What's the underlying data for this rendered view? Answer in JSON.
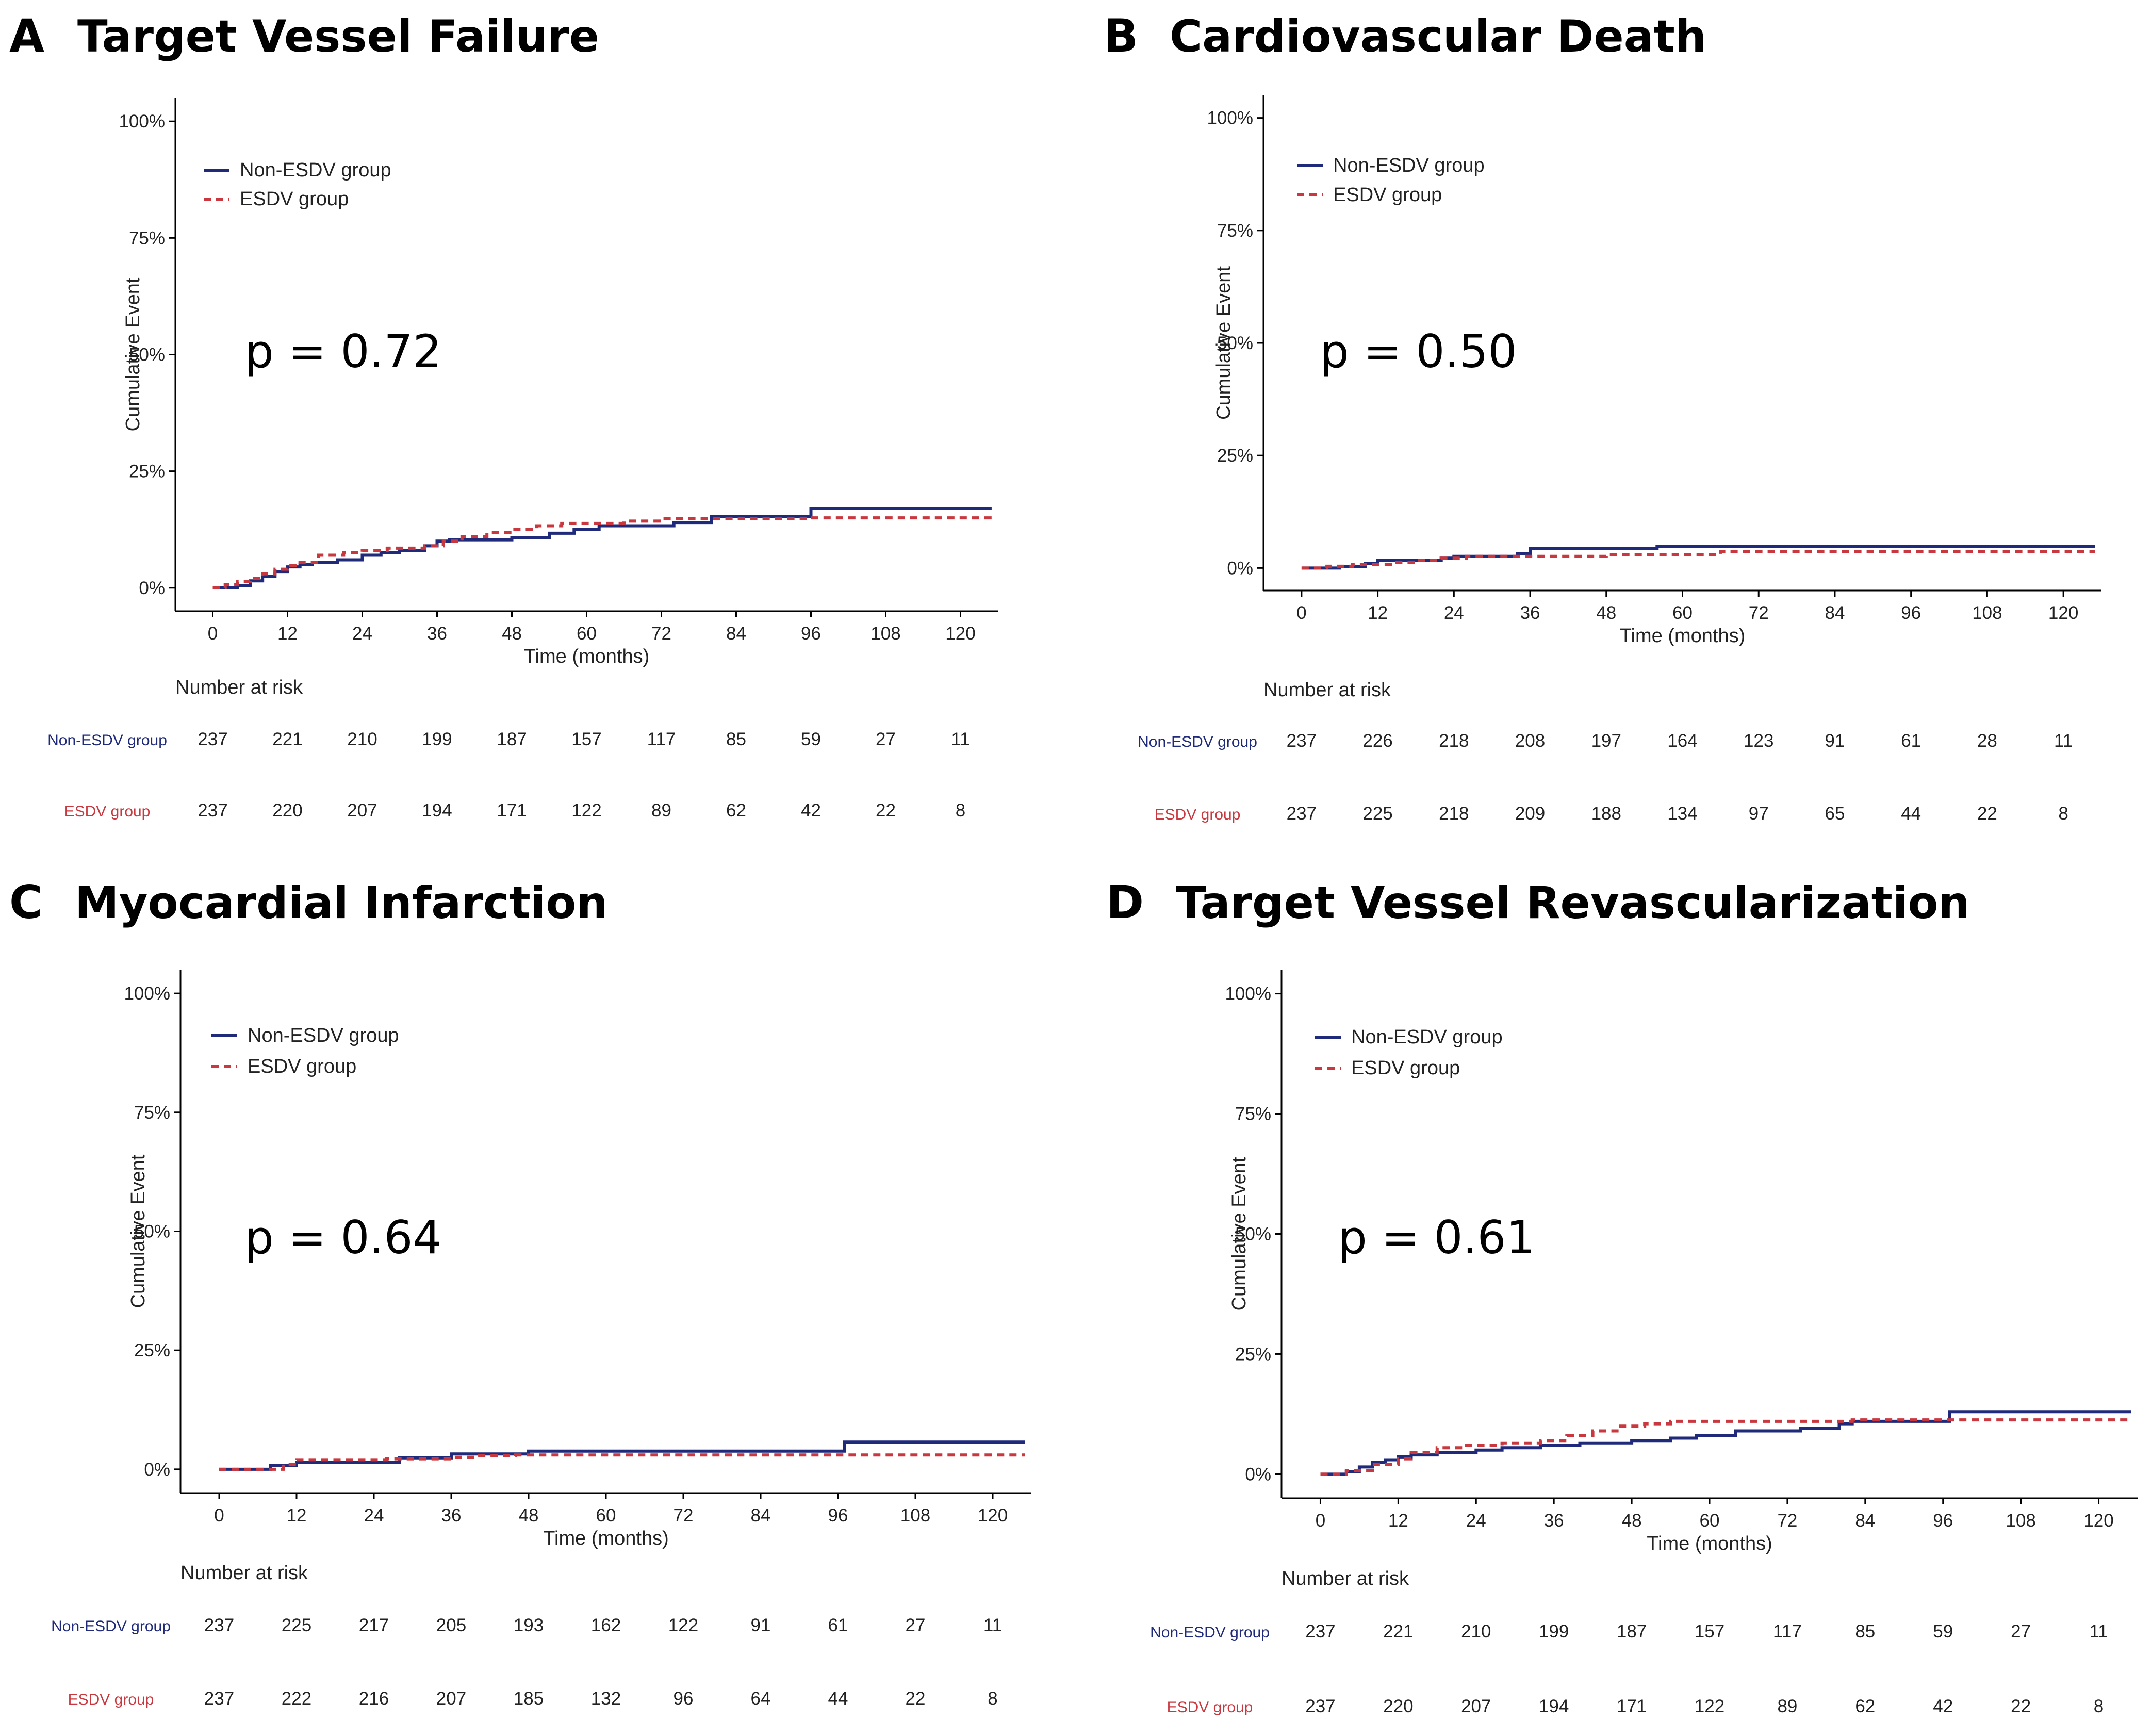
{
  "colors": {
    "non_esdv": "#1f2a7a",
    "esdv": "#c8383e",
    "axis": "#000000",
    "text": "#222222"
  },
  "chart_data": [
    {
      "type": "line",
      "letter": "A",
      "title": "Target Vessel Failure",
      "xlabel": "Time (months)",
      "ylabel": "Cumulative Event",
      "xlim": [
        -6,
        126
      ],
      "ylim": [
        -5,
        105
      ],
      "x_ticks": [
        0,
        12,
        24,
        36,
        48,
        60,
        72,
        84,
        96,
        108,
        120
      ],
      "y_ticks": [
        0,
        25,
        50,
        75,
        100
      ],
      "y_tick_labels": [
        "0%",
        "25%",
        "50%",
        "75%",
        "100%"
      ],
      "grid": false,
      "legend_position": "top-left",
      "p_value": "p = 0.72",
      "series": [
        {
          "name": "Non-ESDV group",
          "style": "solid",
          "x": [
            0,
            4,
            6,
            8,
            10,
            12,
            14,
            16,
            20,
            24,
            27,
            30,
            34,
            36,
            38,
            48,
            54,
            58,
            62,
            74,
            80,
            96,
            125
          ],
          "y": [
            0,
            0.5,
            1.5,
            2.5,
            3.5,
            4.5,
            5,
            5.5,
            6,
            7,
            7.5,
            8,
            9,
            10,
            10.3,
            10.7,
            11.7,
            12.5,
            13.3,
            14,
            15.3,
            17,
            17
          ]
        },
        {
          "name": "ESDV group",
          "style": "dashed",
          "x": [
            0,
            2,
            4,
            6,
            8,
            10,
            12,
            14,
            17,
            21,
            24,
            28,
            34,
            37,
            40,
            44,
            48,
            52,
            56,
            66,
            72,
            96,
            125
          ],
          "y": [
            0,
            0.7,
            1.3,
            2,
            3,
            4,
            4.8,
            5.5,
            7,
            7.5,
            8,
            8.5,
            9,
            10,
            11,
            11.8,
            12.5,
            13.3,
            13.8,
            14.3,
            14.8,
            15,
            15
          ]
        }
      ],
      "risk_table": {
        "title": "Number at risk",
        "times": [
          "0",
          "12",
          "24",
          "36",
          "48",
          "60",
          "72",
          "84",
          "96",
          "108",
          "120"
        ],
        "rows": [
          {
            "name": "Non-ESDV group",
            "values": [
              "237",
              "221",
              "210",
              "199",
              "187",
              "157",
              "117",
              "85",
              "59",
              "27",
              "11"
            ]
          },
          {
            "name": "ESDV group",
            "values": [
              "237",
              "220",
              "207",
              "194",
              "171",
              "122",
              "89",
              "62",
              "42",
              "22",
              "8"
            ]
          }
        ]
      }
    },
    {
      "type": "line",
      "letter": "B",
      "title": "Cardiovascular Death",
      "xlabel": "Time (months)",
      "ylabel": "Cumulative Event",
      "xlim": [
        -6,
        126
      ],
      "ylim": [
        -5,
        105
      ],
      "x_ticks": [
        0,
        12,
        24,
        36,
        48,
        60,
        72,
        84,
        96,
        108,
        120
      ],
      "y_ticks": [
        0,
        25,
        50,
        75,
        100
      ],
      "y_tick_labels": [
        "0%",
        "25%",
        "50%",
        "75%",
        "100%"
      ],
      "grid": false,
      "legend_position": "top-left",
      "p_value": "p = 0.50",
      "series": [
        {
          "name": "Non-ESDV group",
          "style": "solid",
          "x": [
            0,
            6,
            10,
            12,
            22,
            24,
            34,
            36,
            56,
            125
          ],
          "y": [
            0,
            0.3,
            1,
            1.7,
            2.2,
            2.6,
            3.2,
            4.3,
            4.8,
            4.8
          ]
        },
        {
          "name": "ESDV group",
          "style": "dashed",
          "x": [
            0,
            4,
            8,
            14,
            18,
            22,
            26,
            48,
            66,
            125
          ],
          "y": [
            0,
            0.4,
            0.8,
            1.2,
            1.7,
            2.2,
            2.6,
            3,
            3.7,
            3.7
          ]
        }
      ],
      "risk_table": {
        "title": "Number at risk",
        "times": [
          "0",
          "12",
          "24",
          "36",
          "48",
          "60",
          "72",
          "84",
          "96",
          "108",
          "120"
        ],
        "rows": [
          {
            "name": "Non-ESDV group",
            "values": [
              "237",
              "226",
              "218",
              "208",
              "197",
              "164",
              "123",
              "91",
              "61",
              "28",
              "11"
            ]
          },
          {
            "name": "ESDV group",
            "values": [
              "237",
              "225",
              "218",
              "209",
              "188",
              "134",
              "97",
              "65",
              "44",
              "22",
              "8"
            ]
          }
        ]
      }
    },
    {
      "type": "line",
      "letter": "C",
      "title": "Myocardial Infarction",
      "xlabel": "Time (months)",
      "ylabel": "Cumulative Event",
      "xlim": [
        -6,
        126
      ],
      "ylim": [
        -5,
        105
      ],
      "x_ticks": [
        0,
        12,
        24,
        36,
        48,
        60,
        72,
        84,
        96,
        108,
        120
      ],
      "y_ticks": [
        0,
        25,
        50,
        75,
        100
      ],
      "y_tick_labels": [
        "0%",
        "25%",
        "50%",
        "75%",
        "100%"
      ],
      "grid": false,
      "legend_position": "top-left",
      "p_value": "p = 0.64",
      "series": [
        {
          "name": "Non-ESDV group",
          "style": "solid",
          "x": [
            0,
            8,
            12,
            28,
            36,
            48,
            97,
            125
          ],
          "y": [
            0,
            0.8,
            1.5,
            2.4,
            3.2,
            3.8,
            5.7,
            5.7
          ]
        },
        {
          "name": "ESDV group",
          "style": "dashed",
          "x": [
            0,
            10,
            12,
            26,
            36,
            40,
            46,
            125
          ],
          "y": [
            0,
            1,
            2,
            2.2,
            2.5,
            2.8,
            3,
            3
          ]
        }
      ],
      "risk_table": {
        "title": "Number at risk",
        "times": [
          "0",
          "12",
          "24",
          "36",
          "48",
          "60",
          "72",
          "84",
          "96",
          "108",
          "120"
        ],
        "rows": [
          {
            "name": "Non-ESDV group",
            "values": [
              "237",
              "225",
              "217",
              "205",
              "193",
              "162",
              "122",
              "91",
              "61",
              "27",
              "11"
            ]
          },
          {
            "name": "ESDV group",
            "values": [
              "237",
              "222",
              "216",
              "207",
              "185",
              "132",
              "96",
              "64",
              "44",
              "22",
              "8"
            ]
          }
        ]
      }
    },
    {
      "type": "line",
      "letter": "D",
      "title": "Target Vessel Revascularization",
      "xlabel": "Time (months)",
      "ylabel": "Cumulative Event",
      "xlim": [
        -6,
        126
      ],
      "ylim": [
        -5,
        105
      ],
      "x_ticks": [
        0,
        12,
        24,
        36,
        48,
        60,
        72,
        84,
        96,
        108,
        120
      ],
      "y_ticks": [
        0,
        25,
        50,
        75,
        100
      ],
      "y_tick_labels": [
        "0%",
        "25%",
        "50%",
        "75%",
        "100%"
      ],
      "grid": false,
      "legend_position": "top-left",
      "p_value": "p = 0.61",
      "series": [
        {
          "name": "Non-ESDV group",
          "style": "solid",
          "x": [
            0,
            4,
            6,
            8,
            10,
            12,
            14,
            18,
            24,
            28,
            34,
            40,
            48,
            54,
            58,
            64,
            74,
            80,
            82,
            97,
            125
          ],
          "y": [
            0,
            0.5,
            1.5,
            2.5,
            3,
            3.6,
            4,
            4.5,
            5,
            5.5,
            6,
            6.5,
            7,
            7.5,
            8,
            9,
            9.5,
            10.5,
            11,
            13,
            13
          ]
        },
        {
          "name": "ESDV group",
          "style": "dashed",
          "x": [
            0,
            4,
            8,
            12,
            14,
            18,
            22,
            28,
            34,
            38,
            42,
            46,
            50,
            54,
            82,
            125
          ],
          "y": [
            0,
            0.8,
            2,
            3.2,
            4.5,
            5.5,
            6,
            6.5,
            7,
            8,
            9,
            10,
            10.5,
            11,
            11.3,
            11.3
          ]
        }
      ],
      "risk_table": {
        "title": "Number at risk",
        "times": [
          "0",
          "12",
          "24",
          "36",
          "48",
          "60",
          "72",
          "84",
          "96",
          "108",
          "120"
        ],
        "rows": [
          {
            "name": "Non-ESDV group",
            "values": [
              "237",
              "221",
              "210",
              "199",
              "187",
              "157",
              "117",
              "85",
              "59",
              "27",
              "11"
            ]
          },
          {
            "name": "ESDV group",
            "values": [
              "237",
              "220",
              "207",
              "194",
              "171",
              "122",
              "89",
              "62",
              "42",
              "22",
              "8"
            ]
          }
        ]
      }
    }
  ]
}
